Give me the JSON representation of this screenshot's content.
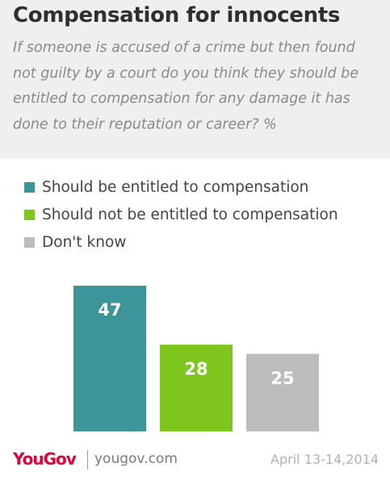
{
  "chart_data": {
    "type": "bar",
    "title": "Compensation for innocents",
    "subtitle": "If someone is accused of a crime but then found not guilty by a court do you think they should be entitled to compensation for any damage it has done to their reputation or career? %",
    "categories": [
      "Should be entitled to compensation",
      "Should not be entitled to compensation",
      "Don't know"
    ],
    "values": [
      47,
      28,
      25
    ],
    "colors": [
      "#3c9598",
      "#7ec61d",
      "#bcbcbc"
    ],
    "data_label_color": "#ffffff",
    "xlabel": "",
    "ylabel": "",
    "ylim": [
      0,
      47
    ],
    "grid": false,
    "legend_position": "top-left"
  },
  "footer": {
    "brand": "YouGov",
    "site": "yougov.com",
    "date": "April 13-14,2014"
  },
  "colors": {
    "header_bg": "#efefef",
    "title_text": "#2f2f2f",
    "subtitle_text": "#8a8a8a",
    "brand_red": "#e4003b"
  }
}
